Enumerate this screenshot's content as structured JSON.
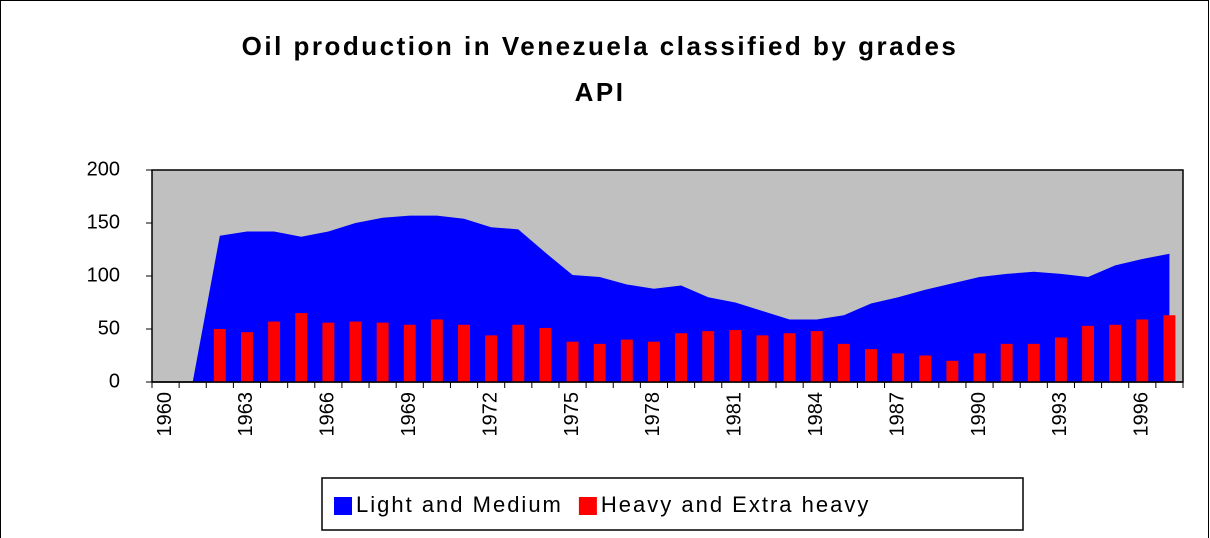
{
  "chart_data": {
    "type": "area_bar",
    "title": [
      "Oil production in Venezuela classified by grades",
      "API"
    ],
    "categories": [
      "1960",
      null,
      null,
      "1963",
      null,
      null,
      "1966",
      null,
      null,
      "1969",
      null,
      null,
      "1972",
      null,
      null,
      "1975",
      null,
      null,
      "1978",
      null,
      null,
      "1981",
      null,
      null,
      "1984",
      null,
      null,
      "1987",
      null,
      null,
      "1990",
      null,
      null,
      "1993",
      null,
      null,
      "1996",
      null
    ],
    "series": [
      {
        "name": "Light and Medium",
        "color": "#0000ff",
        "kind": "area",
        "values": [
          0,
          0,
          138,
          142,
          142,
          137,
          142,
          150,
          155,
          157,
          157,
          154,
          146,
          144,
          122,
          101,
          99,
          92,
          88,
          91,
          80,
          75,
          67,
          59,
          59,
          63,
          74,
          80,
          87,
          93,
          99,
          102,
          104,
          102,
          99,
          110,
          116,
          121
        ]
      },
      {
        "name": "Heavy and Extra heavy",
        "color": "#ff0000",
        "kind": "bar",
        "values": [
          0,
          0,
          50,
          47,
          57,
          65,
          56,
          57,
          56,
          54,
          59,
          54,
          44,
          54,
          51,
          38,
          36,
          40,
          38,
          46,
          48,
          49,
          44,
          46,
          48,
          36,
          31,
          27,
          25,
          20,
          27,
          36,
          36,
          42,
          53,
          54,
          59,
          63
        ]
      }
    ],
    "ylim": [
      0,
      200
    ],
    "yticks": [
      0,
      50,
      100,
      150,
      200
    ],
    "plot_background": "#c0c0c0",
    "legend": "bottom"
  }
}
